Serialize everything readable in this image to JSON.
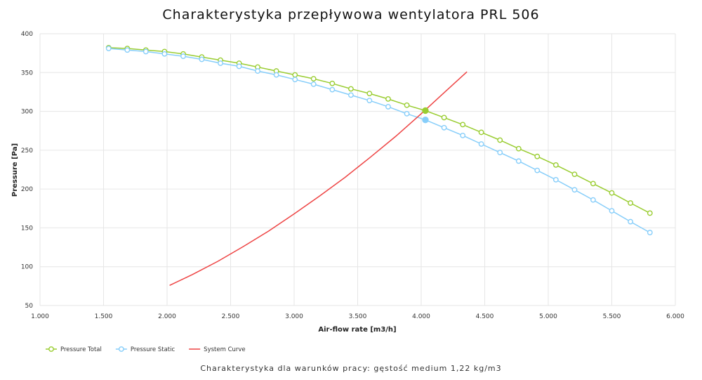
{
  "chart_data": {
    "type": "line",
    "title": "Charakterystyka przepływowa wentylatora PRL 506",
    "subtitle": "Charakterystyka dla warunków pracy: gęstość medium 1,22 kg/m3",
    "xlabel": "Air-flow rate [m3/h]",
    "ylabel": "Pressure [Pa]",
    "xlim": [
      1000,
      6000
    ],
    "ylim": [
      50,
      400
    ],
    "x_ticks": [
      1000,
      1500,
      2000,
      2500,
      3000,
      3500,
      4000,
      4500,
      5000,
      5500,
      6000
    ],
    "x_tick_labels": [
      "1.000",
      "1.500",
      "2.000",
      "2.500",
      "3.000",
      "3.500",
      "4.000",
      "4.500",
      "5.000",
      "5.500",
      "6.000"
    ],
    "y_ticks": [
      50,
      100,
      150,
      200,
      250,
      300,
      350,
      400
    ],
    "y_tick_labels": [
      "50",
      "100",
      "150",
      "200",
      "250",
      "300",
      "350",
      "400"
    ],
    "grid": true,
    "legend_position": "bottom-left",
    "series": [
      {
        "name": "Pressure Total",
        "color": "#9acd32",
        "marker": "circle-open",
        "x": [
          1540,
          1687,
          1833,
          1980,
          2127,
          2273,
          2420,
          2567,
          2713,
          2860,
          3007,
          3153,
          3300,
          3447,
          3593,
          3740,
          3887,
          4033,
          4180,
          4327,
          4473,
          4620,
          4767,
          4913,
          5060,
          5207,
          5353,
          5500,
          5647,
          5800
        ],
        "y": [
          382,
          381,
          379,
          377,
          374,
          370,
          366,
          362,
          357,
          352,
          347,
          342,
          336,
          329,
          323,
          316,
          308,
          301,
          292,
          283,
          273,
          263,
          252,
          242,
          231,
          219,
          207,
          195,
          182,
          169
        ]
      },
      {
        "name": "Pressure Static",
        "color": "#87cefa",
        "marker": "circle-open",
        "x": [
          1540,
          1687,
          1833,
          1980,
          2127,
          2273,
          2420,
          2567,
          2713,
          2860,
          3007,
          3153,
          3300,
          3447,
          3593,
          3740,
          3887,
          4033,
          4180,
          4327,
          4473,
          4620,
          4767,
          4913,
          5060,
          5207,
          5353,
          5500,
          5647,
          5800
        ],
        "y": [
          381,
          379,
          377,
          374,
          371,
          367,
          362,
          358,
          352,
          347,
          341,
          335,
          328,
          321,
          314,
          306,
          297,
          289,
          279,
          269,
          258,
          247,
          236,
          224,
          212,
          199,
          186,
          172,
          158,
          144
        ]
      },
      {
        "name": "System Curve",
        "color": "#ee4444",
        "marker": "none",
        "x": [
          2020,
          2200,
          2400,
          2600,
          2800,
          3000,
          3200,
          3400,
          3600,
          3800,
          4000,
          4200,
          4360
        ],
        "y": [
          76,
          90,
          107,
          126,
          146,
          168,
          191,
          215,
          241,
          268,
          297,
          327,
          351
        ]
      }
    ],
    "operating_points": [
      {
        "series": "Pressure Total",
        "x": 4033,
        "y": 301,
        "color": "#9acd32"
      },
      {
        "series": "Pressure Static",
        "x": 4033,
        "y": 289,
        "color": "#87cefa"
      }
    ]
  }
}
